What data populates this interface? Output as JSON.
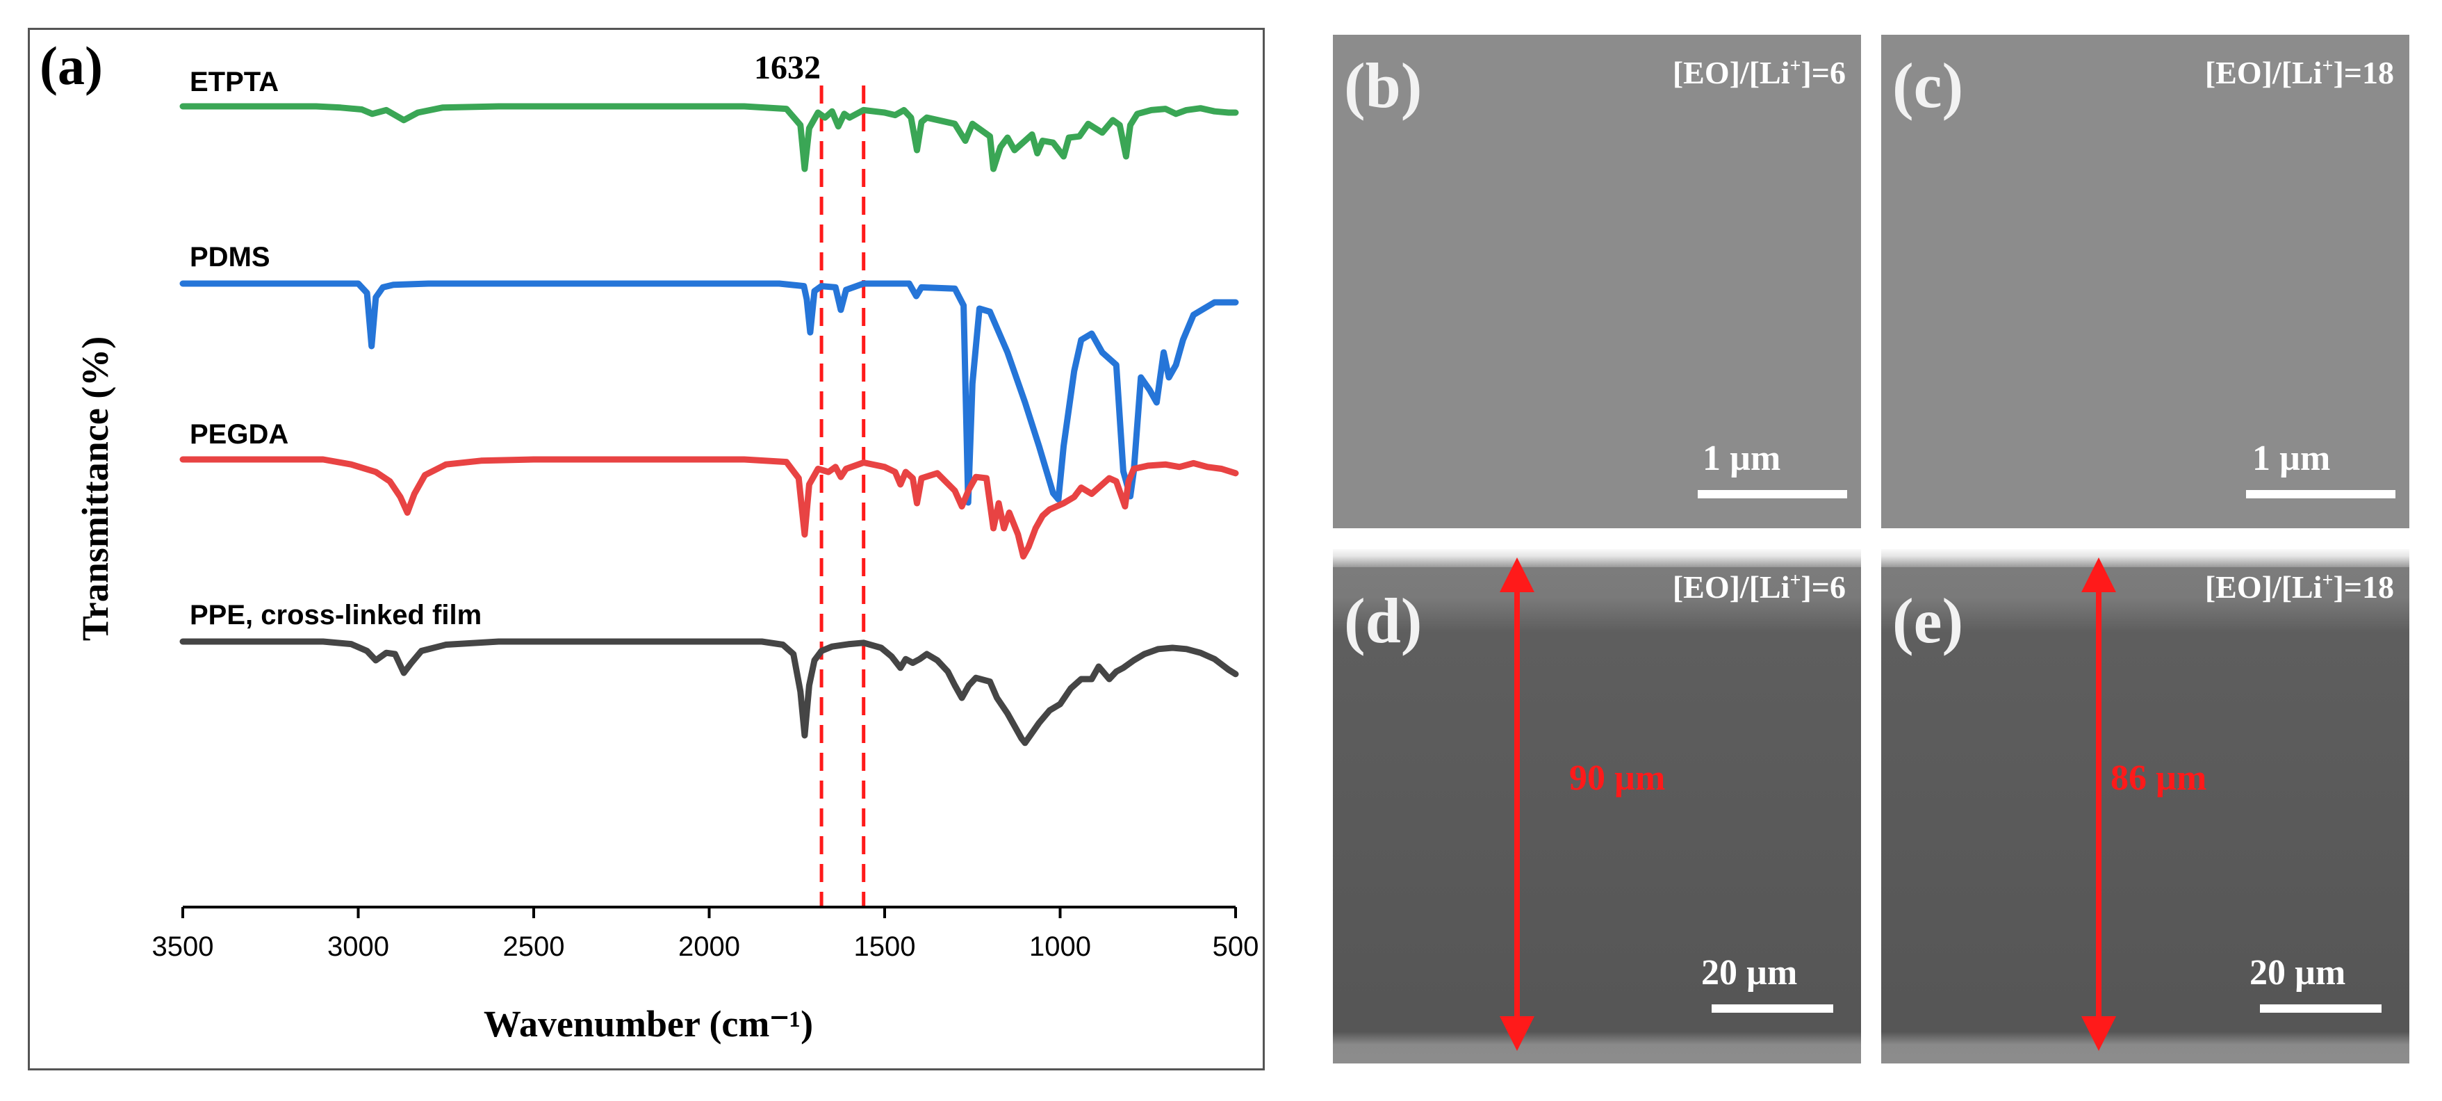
{
  "chart_data": {
    "type": "line",
    "panel_label": "(a)",
    "xlabel": "Wavenumber (cm⁻¹)",
    "ylabel": "Transmittance (%)",
    "xlim": [
      3500,
      500
    ],
    "x_reversed": true,
    "xticks": [
      3500,
      3000,
      2500,
      2000,
      1500,
      1000,
      500
    ],
    "annotation": {
      "text": "1632",
      "reference_lines_cm1": [
        1680,
        1560
      ]
    },
    "series": [
      {
        "name": "ETPTA",
        "color": "#3aa655",
        "points": [
          [
            3500,
            0
          ],
          [
            3120,
            0
          ],
          [
            3050,
            -2
          ],
          [
            2990,
            -5
          ],
          [
            2960,
            -12
          ],
          [
            2920,
            -6
          ],
          [
            2870,
            -22
          ],
          [
            2830,
            -10
          ],
          [
            2760,
            -2
          ],
          [
            2600,
            0
          ],
          [
            1900,
            0
          ],
          [
            1780,
            -4
          ],
          [
            1740,
            -30
          ],
          [
            1728,
            -100
          ],
          [
            1715,
            -35
          ],
          [
            1690,
            -10
          ],
          [
            1670,
            -18
          ],
          [
            1650,
            -8
          ],
          [
            1632,
            -32
          ],
          [
            1615,
            -12
          ],
          [
            1600,
            -18
          ],
          [
            1560,
            -6
          ],
          [
            1500,
            -10
          ],
          [
            1470,
            -14
          ],
          [
            1445,
            -6
          ],
          [
            1425,
            -18
          ],
          [
            1408,
            -70
          ],
          [
            1395,
            -25
          ],
          [
            1380,
            -18
          ],
          [
            1300,
            -28
          ],
          [
            1270,
            -55
          ],
          [
            1250,
            -28
          ],
          [
            1200,
            -48
          ],
          [
            1190,
            -100
          ],
          [
            1170,
            -65
          ],
          [
            1150,
            -50
          ],
          [
            1130,
            -70
          ],
          [
            1110,
            -60
          ],
          [
            1080,
            -45
          ],
          [
            1065,
            -75
          ],
          [
            1050,
            -55
          ],
          [
            1020,
            -58
          ],
          [
            990,
            -80
          ],
          [
            975,
            -50
          ],
          [
            945,
            -48
          ],
          [
            920,
            -28
          ],
          [
            880,
            -42
          ],
          [
            850,
            -22
          ],
          [
            830,
            -30
          ],
          [
            812,
            -80
          ],
          [
            800,
            -30
          ],
          [
            780,
            -12
          ],
          [
            740,
            -6
          ],
          [
            700,
            -4
          ],
          [
            670,
            -12
          ],
          [
            640,
            -6
          ],
          [
            600,
            -3
          ],
          [
            560,
            -8
          ],
          [
            520,
            -10
          ],
          [
            500,
            -10
          ]
        ]
      },
      {
        "name": "PDMS",
        "color": "#2575d8",
        "points": [
          [
            3500,
            0
          ],
          [
            3000,
            0
          ],
          [
            2975,
            -15
          ],
          [
            2962,
            -100
          ],
          [
            2950,
            -22
          ],
          [
            2930,
            -6
          ],
          [
            2900,
            -2
          ],
          [
            2800,
            0
          ],
          [
            1800,
            0
          ],
          [
            1730,
            -4
          ],
          [
            1722,
            -25
          ],
          [
            1712,
            -78
          ],
          [
            1700,
            -12
          ],
          [
            1680,
            -4
          ],
          [
            1640,
            -6
          ],
          [
            1625,
            -42
          ],
          [
            1610,
            -10
          ],
          [
            1560,
            0
          ],
          [
            1430,
            0
          ],
          [
            1410,
            -20
          ],
          [
            1395,
            -6
          ],
          [
            1300,
            -8
          ],
          [
            1275,
            -35
          ],
          [
            1262,
            -350
          ],
          [
            1250,
            -160
          ],
          [
            1230,
            -40
          ],
          [
            1200,
            -45
          ],
          [
            1150,
            -110
          ],
          [
            1100,
            -190
          ],
          [
            1060,
            -260
          ],
          [
            1020,
            -335
          ],
          [
            1005,
            -345
          ],
          [
            990,
            -260
          ],
          [
            960,
            -140
          ],
          [
            940,
            -90
          ],
          [
            910,
            -80
          ],
          [
            880,
            -110
          ],
          [
            860,
            -120
          ],
          [
            840,
            -130
          ],
          [
            820,
            -300
          ],
          [
            800,
            -340
          ],
          [
            790,
            -300
          ],
          [
            770,
            -150
          ],
          [
            745,
            -170
          ],
          [
            725,
            -190
          ],
          [
            705,
            -110
          ],
          [
            690,
            -150
          ],
          [
            670,
            -130
          ],
          [
            650,
            -90
          ],
          [
            620,
            -50
          ],
          [
            590,
            -40
          ],
          [
            560,
            -30
          ],
          [
            530,
            -30
          ],
          [
            500,
            -30
          ]
        ]
      },
      {
        "name": "PEGDA",
        "color": "#e84343",
        "points": [
          [
            3500,
            0
          ],
          [
            3100,
            0
          ],
          [
            3020,
            -8
          ],
          [
            2950,
            -20
          ],
          [
            2910,
            -35
          ],
          [
            2880,
            -60
          ],
          [
            2860,
            -85
          ],
          [
            2840,
            -55
          ],
          [
            2810,
            -25
          ],
          [
            2750,
            -8
          ],
          [
            2650,
            -2
          ],
          [
            2500,
            0
          ],
          [
            1900,
            0
          ],
          [
            1780,
            -4
          ],
          [
            1745,
            -30
          ],
          [
            1728,
            -120
          ],
          [
            1715,
            -40
          ],
          [
            1690,
            -15
          ],
          [
            1660,
            -20
          ],
          [
            1640,
            -12
          ],
          [
            1625,
            -28
          ],
          [
            1610,
            -15
          ],
          [
            1560,
            -5
          ],
          [
            1500,
            -12
          ],
          [
            1470,
            -20
          ],
          [
            1455,
            -40
          ],
          [
            1440,
            -20
          ],
          [
            1420,
            -30
          ],
          [
            1408,
            -70
          ],
          [
            1395,
            -30
          ],
          [
            1350,
            -22
          ],
          [
            1300,
            -50
          ],
          [
            1280,
            -75
          ],
          [
            1260,
            -48
          ],
          [
            1240,
            -28
          ],
          [
            1210,
            -30
          ],
          [
            1200,
            -70
          ],
          [
            1190,
            -110
          ],
          [
            1175,
            -70
          ],
          [
            1160,
            -110
          ],
          [
            1145,
            -85
          ],
          [
            1120,
            -120
          ],
          [
            1105,
            -155
          ],
          [
            1090,
            -140
          ],
          [
            1070,
            -110
          ],
          [
            1050,
            -90
          ],
          [
            1030,
            -80
          ],
          [
            990,
            -70
          ],
          [
            960,
            -60
          ],
          [
            940,
            -45
          ],
          [
            910,
            -55
          ],
          [
            880,
            -40
          ],
          [
            860,
            -30
          ],
          [
            840,
            -35
          ],
          [
            815,
            -75
          ],
          [
            805,
            -35
          ],
          [
            790,
            -15
          ],
          [
            750,
            -10
          ],
          [
            700,
            -8
          ],
          [
            660,
            -12
          ],
          [
            620,
            -6
          ],
          [
            580,
            -12
          ],
          [
            540,
            -15
          ],
          [
            500,
            -22
          ]
        ]
      },
      {
        "name": "PPE, cross-linked film",
        "color": "#454545",
        "points": [
          [
            3500,
            0
          ],
          [
            3100,
            0
          ],
          [
            3020,
            -4
          ],
          [
            2975,
            -15
          ],
          [
            2950,
            -30
          ],
          [
            2920,
            -18
          ],
          [
            2895,
            -20
          ],
          [
            2870,
            -50
          ],
          [
            2850,
            -35
          ],
          [
            2820,
            -15
          ],
          [
            2750,
            -5
          ],
          [
            2600,
            0
          ],
          [
            1850,
            0
          ],
          [
            1790,
            -5
          ],
          [
            1760,
            -20
          ],
          [
            1740,
            -80
          ],
          [
            1728,
            -150
          ],
          [
            1715,
            -70
          ],
          [
            1700,
            -30
          ],
          [
            1680,
            -15
          ],
          [
            1650,
            -8
          ],
          [
            1600,
            -4
          ],
          [
            1560,
            -2
          ],
          [
            1510,
            -10
          ],
          [
            1480,
            -24
          ],
          [
            1455,
            -42
          ],
          [
            1440,
            -28
          ],
          [
            1420,
            -34
          ],
          [
            1400,
            -28
          ],
          [
            1380,
            -20
          ],
          [
            1350,
            -30
          ],
          [
            1320,
            -48
          ],
          [
            1300,
            -70
          ],
          [
            1280,
            -90
          ],
          [
            1260,
            -70
          ],
          [
            1240,
            -58
          ],
          [
            1200,
            -64
          ],
          [
            1180,
            -90
          ],
          [
            1150,
            -115
          ],
          [
            1130,
            -135
          ],
          [
            1110,
            -155
          ],
          [
            1100,
            -162
          ],
          [
            1085,
            -150
          ],
          [
            1060,
            -130
          ],
          [
            1030,
            -110
          ],
          [
            1000,
            -100
          ],
          [
            970,
            -75
          ],
          [
            940,
            -60
          ],
          [
            910,
            -60
          ],
          [
            890,
            -40
          ],
          [
            860,
            -60
          ],
          [
            840,
            -48
          ],
          [
            820,
            -42
          ],
          [
            790,
            -30
          ],
          [
            760,
            -20
          ],
          [
            720,
            -12
          ],
          [
            680,
            -10
          ],
          [
            640,
            -12
          ],
          [
            600,
            -18
          ],
          [
            560,
            -28
          ],
          [
            520,
            -45
          ],
          [
            500,
            -52
          ]
        ]
      }
    ]
  },
  "sem_panels": [
    {
      "letter": "(b)",
      "ratio_prefix": "[EO]/[Li",
      "ratio_sup": "+",
      "ratio_suffix": "]=6",
      "scale": "1 µm"
    },
    {
      "letter": "(c)",
      "ratio_prefix": "[EO]/[Li",
      "ratio_sup": "+",
      "ratio_suffix": "]=18",
      "scale": "1 µm"
    },
    {
      "letter": "(d)",
      "ratio_prefix": "[EO]/[Li",
      "ratio_sup": "+",
      "ratio_suffix": "]=6",
      "scale": "20 µm",
      "thickness": "90 µm"
    },
    {
      "letter": "(e)",
      "ratio_prefix": "[EO]/[Li",
      "ratio_sup": "+",
      "ratio_suffix": "]=18",
      "scale": "20 µm",
      "thickness": "86 µm"
    }
  ],
  "colors": {
    "annotation": "#ff1a1a",
    "axis": "#000000"
  }
}
